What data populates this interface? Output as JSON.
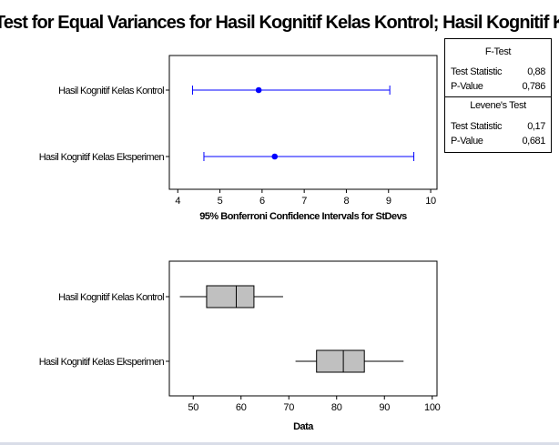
{
  "title": "Test for Equal Variances for Hasil Kognitif Kelas Kontrol; Hasil Kognitif Kelas Eksperimen",
  "stats_box": {
    "f_test": {
      "heading": "F-Test",
      "rows": [
        {
          "label": "Test Statistic",
          "value": "0,88"
        },
        {
          "label": "P-Value",
          "value": "0,786"
        }
      ]
    },
    "levene": {
      "heading": "Levene's Test",
      "rows": [
        {
          "label": "Test Statistic",
          "value": "0,17"
        },
        {
          "label": "P-Value",
          "value": "0,681"
        }
      ]
    }
  },
  "colors": {
    "interval": "#0000ff",
    "box_fill": "#c0c0c0",
    "frame": "#000000"
  },
  "chart_data": [
    {
      "type": "interval",
      "xlabel": "95% Bonferroni Confidence Intervals for StDevs",
      "xlim": [
        3.8,
        10.15
      ],
      "xticks": [
        4,
        5,
        6,
        7,
        8,
        9,
        10
      ],
      "categories": [
        "Hasil Kognitif Kelas Kontrol",
        "Hasil Kognitif Kelas Eksperimen"
      ],
      "series": [
        {
          "low": 4.35,
          "point": 5.92,
          "high": 9.03
        },
        {
          "low": 4.62,
          "point": 6.3,
          "high": 9.6
        }
      ]
    },
    {
      "type": "boxplot",
      "xlabel": "Data",
      "xlim": [
        45,
        101
      ],
      "xticks": [
        50,
        60,
        70,
        80,
        90,
        100
      ],
      "categories": [
        "Hasil Kognitif Kelas Kontrol",
        "Hasil Kognitif Kelas Eksperimen"
      ],
      "series": [
        {
          "min": 47.2,
          "q1": 52.8,
          "median": 59.0,
          "q3": 62.7,
          "max": 68.8
        },
        {
          "min": 71.4,
          "q1": 75.8,
          "median": 81.4,
          "q3": 85.8,
          "max": 94.0
        }
      ]
    }
  ]
}
